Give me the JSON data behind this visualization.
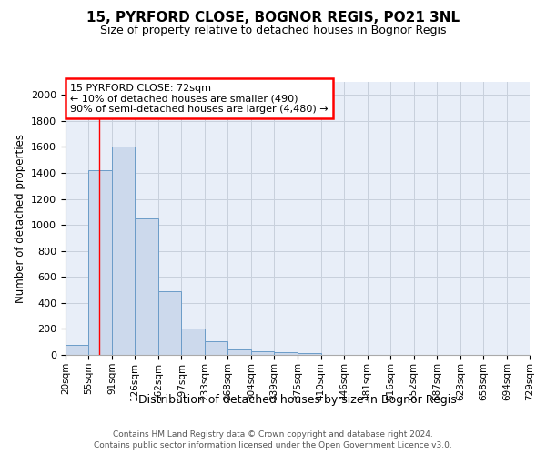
{
  "title1": "15, PYRFORD CLOSE, BOGNOR REGIS, PO21 3NL",
  "title2": "Size of property relative to detached houses in Bognor Regis",
  "xlabel": "Distribution of detached houses by size in Bognor Regis",
  "ylabel": "Number of detached properties",
  "bin_edges": [
    20,
    55,
    91,
    126,
    162,
    197,
    233,
    268,
    304,
    339,
    375,
    410,
    446,
    481,
    516,
    552,
    587,
    623,
    658,
    694,
    729
  ],
  "bar_heights": [
    80,
    1420,
    1600,
    1050,
    490,
    205,
    105,
    40,
    25,
    20,
    15,
    0,
    0,
    0,
    0,
    0,
    0,
    0,
    0,
    0
  ],
  "bar_color": "#ccd9ec",
  "bar_edge_color": "#6b9cc8",
  "grid_color": "#c8d0dc",
  "bg_color": "#e8eef8",
  "red_line_x": 72,
  "annotation_line1": "15 PYRFORD CLOSE: 72sqm",
  "annotation_line2": "← 10% of detached houses are smaller (490)",
  "annotation_line3": "90% of semi-detached houses are larger (4,480) →",
  "annotation_box_color": "white",
  "annotation_border_color": "red",
  "ylim": [
    0,
    2100
  ],
  "yticks": [
    0,
    200,
    400,
    600,
    800,
    1000,
    1200,
    1400,
    1600,
    1800,
    2000
  ],
  "footer1": "Contains HM Land Registry data © Crown copyright and database right 2024.",
  "footer2": "Contains public sector information licensed under the Open Government Licence v3.0."
}
